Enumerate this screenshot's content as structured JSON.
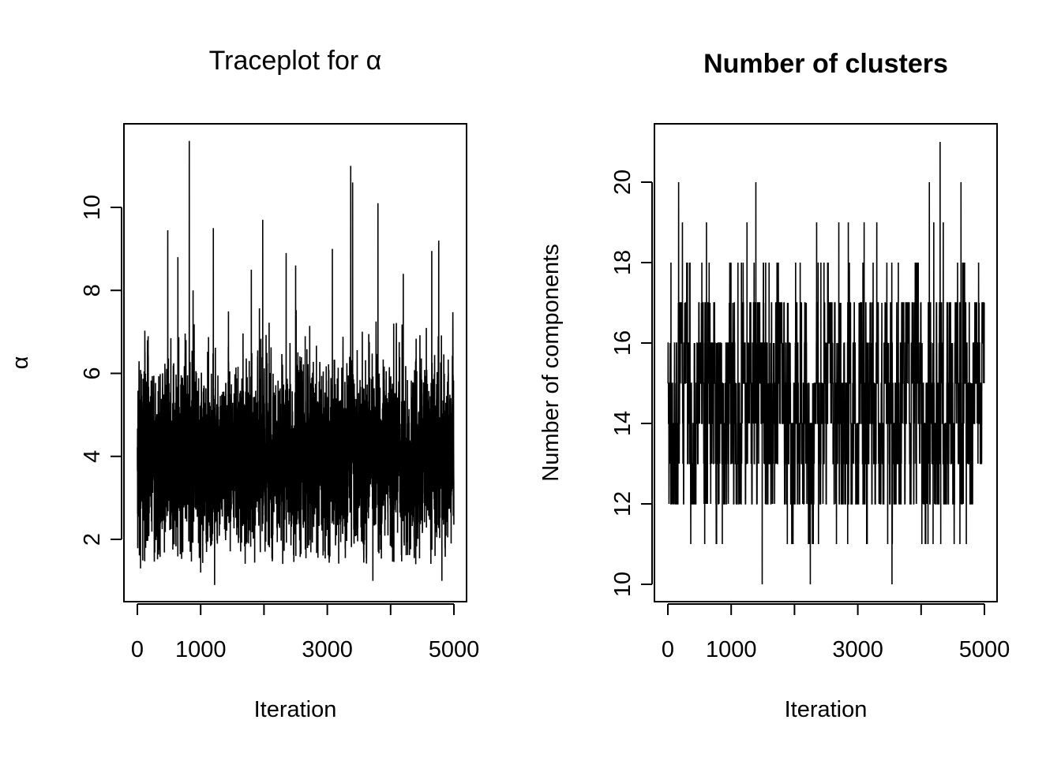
{
  "chart_data": [
    {
      "type": "line",
      "title": "Traceplot for α",
      "xlabel": "Iteration",
      "ylabel": "α",
      "xlim": [
        0,
        5000
      ],
      "ylim": [
        0.9,
        11.6
      ],
      "x_ticks": [
        0,
        1000,
        2000,
        3000,
        4000,
        5000
      ],
      "x_tick_labels": [
        "0",
        "1000",
        "",
        "3000",
        "",
        "5000"
      ],
      "y_ticks": [
        2,
        4,
        6,
        8,
        10
      ],
      "y_tick_labels": [
        "2",
        "4",
        "6",
        "8",
        "10"
      ],
      "grid": false,
      "series": [
        {
          "n_iterations": 5000,
          "typical_range": [
            2.5,
            5.8
          ],
          "mean_approx": 4.0,
          "min_value": 0.9,
          "max_value": 11.6,
          "spikes": [
            {
              "x": 820,
              "y": 11.6
            },
            {
              "x": 3370,
              "y": 11.0
            },
            {
              "x": 3400,
              "y": 10.6
            },
            {
              "x": 3800,
              "y": 10.1
            },
            {
              "x": 1980,
              "y": 9.7
            },
            {
              "x": 480,
              "y": 9.45
            },
            {
              "x": 1200,
              "y": 9.5
            },
            {
              "x": 4760,
              "y": 9.2
            },
            {
              "x": 2350,
              "y": 8.9
            },
            {
              "x": 4650,
              "y": 8.95
            },
            {
              "x": 2500,
              "y": 8.6
            },
            {
              "x": 1800,
              "y": 8.5
            },
            {
              "x": 3080,
              "y": 9.0
            },
            {
              "x": 4200,
              "y": 8.4
            },
            {
              "x": 640,
              "y": 8.8
            },
            {
              "x": 880,
              "y": 8.0
            },
            {
              "x": 1220,
              "y": 0.9
            },
            {
              "x": 3720,
              "y": 1.0
            },
            {
              "x": 4810,
              "y": 1.0
            },
            {
              "x": 50,
              "y": 1.3
            },
            {
              "x": 1000,
              "y": 1.2
            }
          ]
        }
      ]
    },
    {
      "type": "line",
      "title": "Number of clusters",
      "xlabel": "Iteration",
      "ylabel": "Number of components",
      "xlim": [
        0,
        5000
      ],
      "ylim": [
        10,
        21
      ],
      "x_ticks": [
        0,
        1000,
        2000,
        3000,
        4000,
        5000
      ],
      "x_tick_labels": [
        "0",
        "1000",
        "",
        "3000",
        "",
        "5000"
      ],
      "y_ticks": [
        10,
        12,
        14,
        16,
        18,
        20
      ],
      "y_tick_labels": [
        "10",
        "12",
        "14",
        "16",
        "18",
        "20"
      ],
      "grid": false,
      "series": [
        {
          "n_iterations": 5000,
          "typical_range": [
            12,
            17
          ],
          "mean_approx": 14.5,
          "min_value": 10,
          "max_value": 21,
          "spikes": [
            {
              "x": 4300,
              "y": 21
            },
            {
              "x": 170,
              "y": 20
            },
            {
              "x": 1390,
              "y": 20
            },
            {
              "x": 4130,
              "y": 20
            },
            {
              "x": 4630,
              "y": 20
            },
            {
              "x": 230,
              "y": 19
            },
            {
              "x": 610,
              "y": 19
            },
            {
              "x": 1250,
              "y": 19
            },
            {
              "x": 2350,
              "y": 19
            },
            {
              "x": 2700,
              "y": 19
            },
            {
              "x": 2850,
              "y": 19
            },
            {
              "x": 3100,
              "y": 19
            },
            {
              "x": 3300,
              "y": 19
            },
            {
              "x": 4200,
              "y": 19
            },
            {
              "x": 4350,
              "y": 19
            },
            {
              "x": 1490,
              "y": 10
            },
            {
              "x": 2250,
              "y": 10
            },
            {
              "x": 3540,
              "y": 10
            }
          ]
        }
      ]
    }
  ]
}
